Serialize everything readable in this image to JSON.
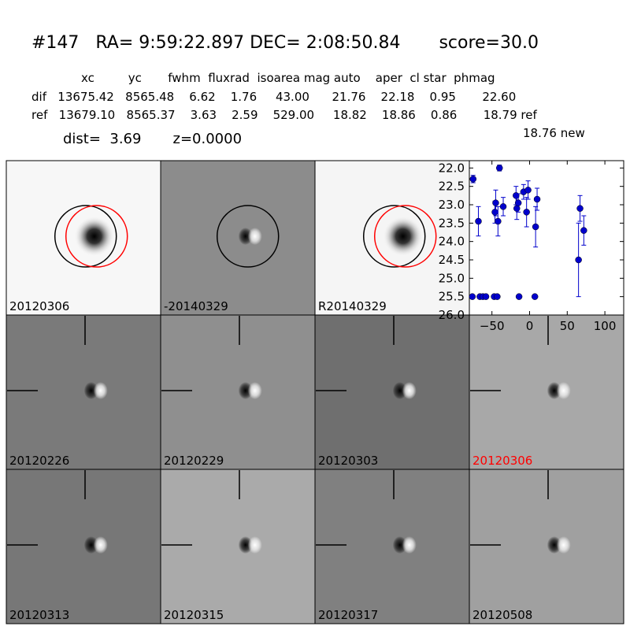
{
  "header": {
    "title": "#147   RA= 9:59:22.897 DEC= 2:08:50.84       score=30.0",
    "columns": "xc         yc       fwhm  fluxrad  isoarea mag auto    aper  cl star  phmag",
    "dif_row": "dif   13675.42   8565.48    6.62    1.76     43.00      21.76    22.18    0.95       22.60",
    "ref_row": "ref   13679.10   8565.37    3.63    2.59    529.00     18.82    18.86    0.86       18.79 ref",
    "new_mag": "18.76 new",
    "dist_line": "dist=  3.69       z=0.0000"
  },
  "colors": {
    "highlight": "#ff0000",
    "points": "#0000cc",
    "circle_ref": "#000000",
    "circle_new": "#ff0000"
  },
  "stamps": [
    {
      "label": "20120306",
      "kind": "star-bright",
      "bg": "#f7f7f7",
      "circles": true
    },
    {
      "label": "-20140329",
      "kind": "dipole",
      "bg": "#8c8c8c",
      "circles": false
    },
    {
      "label": "R20140329",
      "kind": "star-bright",
      "bg": "#f5f5f5",
      "circles": true
    },
    {
      "label": "20120226",
      "kind": "dipole",
      "bg": "#7a7a7a",
      "crosshair": true
    },
    {
      "label": "20120229",
      "kind": "dipole",
      "bg": "#8f8f8f",
      "crosshair": true
    },
    {
      "label": "20120303",
      "kind": "dipole",
      "bg": "#6f6f6f",
      "crosshair": true
    },
    {
      "label": "20120306",
      "kind": "dipole",
      "bg": "#a8a8a8",
      "crosshair": true,
      "highlight": true
    },
    {
      "label": "20120313",
      "kind": "dipole",
      "bg": "#777777",
      "crosshair": true
    },
    {
      "label": "20120315",
      "kind": "dipole",
      "bg": "#aaaaaa",
      "crosshair": true
    },
    {
      "label": "20120317",
      "kind": "dipole",
      "bg": "#808080",
      "crosshair": true
    },
    {
      "label": "20120508",
      "kind": "dipole",
      "bg": "#a0a0a0",
      "crosshair": true
    }
  ],
  "chart_data": {
    "type": "scatter",
    "xlim": [
      -80,
      125
    ],
    "ylim": [
      26.0,
      21.8
    ],
    "x_ticks": [
      -50,
      0,
      50,
      100
    ],
    "x_tick_labels": [
      "−50",
      "0",
      "50",
      "100"
    ],
    "y_ticks": [
      22.0,
      22.5,
      23.0,
      23.5,
      24.0,
      24.5,
      25.0,
      25.5,
      26.0
    ],
    "y_tick_labels": [
      "22.0",
      "22.5",
      "23.0",
      "23.5",
      "24.0",
      "24.5",
      "25.0",
      "25.5",
      "26.0"
    ],
    "points": [
      {
        "x": -75,
        "y": 22.3,
        "err": 0.1
      },
      {
        "x": -68,
        "y": 23.45,
        "err": 0.4
      },
      {
        "x": -46,
        "y": 23.2,
        "err": 0.3
      },
      {
        "x": -45,
        "y": 22.95,
        "err": 0.35
      },
      {
        "x": -42,
        "y": 23.45,
        "err": 0.4
      },
      {
        "x": -40,
        "y": 22.0,
        "err": 0.08
      },
      {
        "x": -35,
        "y": 23.05,
        "err": 0.25
      },
      {
        "x": -18,
        "y": 22.75,
        "err": 0.25
      },
      {
        "x": -17,
        "y": 23.1,
        "err": 0.3
      },
      {
        "x": -15,
        "y": 22.95,
        "err": 0.25
      },
      {
        "x": -8,
        "y": 22.65,
        "err": 0.2
      },
      {
        "x": -4,
        "y": 23.2,
        "err": 0.4
      },
      {
        "x": -2,
        "y": 22.6,
        "err": 0.25
      },
      {
        "x": 8,
        "y": 23.6,
        "err": 0.55
      },
      {
        "x": 10,
        "y": 22.85,
        "err": 0.3
      },
      {
        "x": 65,
        "y": 24.5,
        "err": 1.0
      },
      {
        "x": 67,
        "y": 23.1,
        "err": 0.35
      },
      {
        "x": 72,
        "y": 23.7,
        "err": 0.4
      }
    ],
    "upper_limits": [
      {
        "x": -76,
        "y": 25.5
      },
      {
        "x": -66,
        "y": 25.5
      },
      {
        "x": -62,
        "y": 25.5
      },
      {
        "x": -58,
        "y": 25.5
      },
      {
        "x": -47,
        "y": 25.5
      },
      {
        "x": -43,
        "y": 25.5
      },
      {
        "x": -14,
        "y": 25.5
      },
      {
        "x": 7,
        "y": 25.5
      }
    ]
  }
}
